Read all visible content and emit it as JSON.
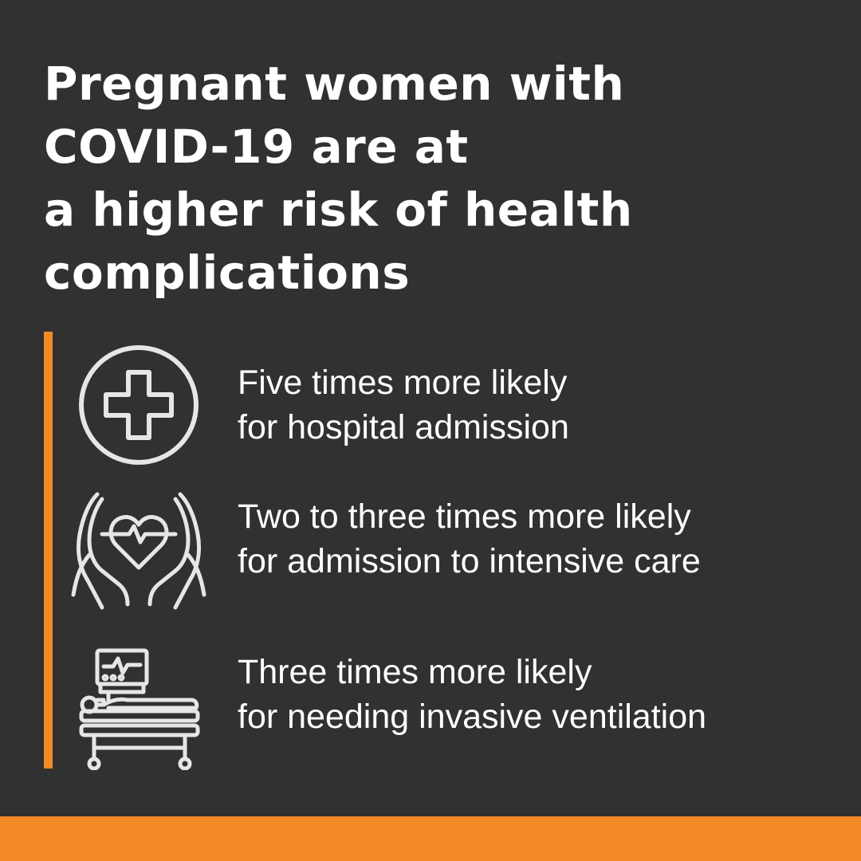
{
  "headline": {
    "lines": [
      "Pregnant women with",
      "COVID-19 are at",
      "a higher risk of health",
      "complications"
    ]
  },
  "stats": [
    {
      "icon": "medical-cross-icon",
      "lines": [
        "Five times more likely",
        "for hospital admission"
      ]
    },
    {
      "icon": "hands-heart-icon",
      "lines": [
        "Two to three times more likely",
        "for admission to intensive care"
      ]
    },
    {
      "icon": "hospital-bed-ventilator-icon",
      "lines": [
        "Three times more likely",
        "for needing invasive ventilation"
      ]
    }
  ],
  "colors": {
    "background": "#313131",
    "accent": "#f28a26",
    "text": "#ffffff",
    "icon_stroke": "#e6e6e6"
  }
}
